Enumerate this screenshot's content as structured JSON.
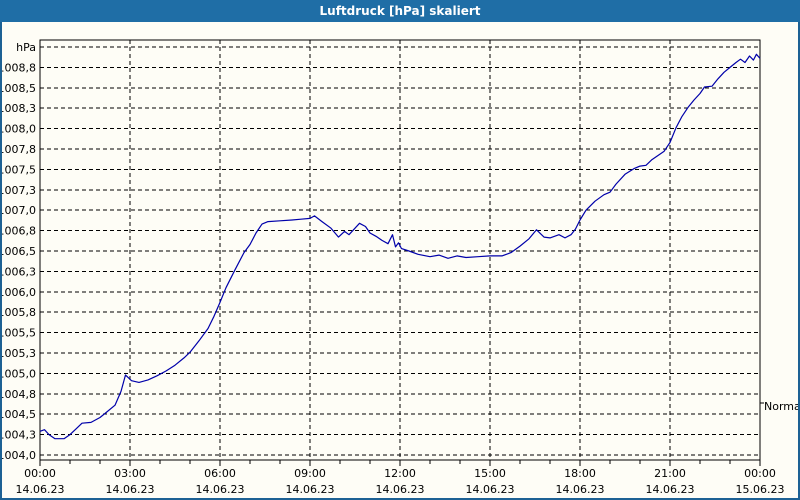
{
  "window": {
    "title": "Luftdruck [hPa] skaliert"
  },
  "colors": {
    "title_bar": "#1f6ea6",
    "title_text": "#ffffff",
    "window_border": "#1d6194",
    "background": "#fefdf6",
    "grid": "#000000",
    "frame": "#000000",
    "label_text": "#000000",
    "curve": "#0000aa"
  },
  "chart_data": {
    "type": "line",
    "title": "Luftdruck [hPa] skaliert",
    "xlabel": "",
    "ylabel": "hPa",
    "grid": "dashed",
    "legend_position": "none",
    "y_axis": {
      "min": 1004.0,
      "max": 1009.0,
      "step": 0.25,
      "tick_labels": [
        "hPa",
        "1008,8",
        "1008,5",
        "1008,3",
        "1008,0",
        "1007,8",
        "1007,5",
        "1007,3",
        "1007,0",
        "1006,8",
        "1006,5",
        "1006,3",
        "1006,0",
        "1005,8",
        "1005,5",
        "1005,3",
        "1005,0",
        "1004,8",
        "1004,5",
        "1004,3",
        "1004,0"
      ]
    },
    "x_axis": {
      "range_hours": [
        0,
        24
      ],
      "major_tick_hours": 3,
      "minor_tick_hours": 1,
      "labels": [
        {
          "time": "00:00",
          "date": "14.06.23"
        },
        {
          "time": "03:00",
          "date": "14.06.23"
        },
        {
          "time": "06:00",
          "date": "14.06.23"
        },
        {
          "time": "09:00",
          "date": "14.06.23"
        },
        {
          "time": "12:00",
          "date": "14.06.23"
        },
        {
          "time": "15:00",
          "date": "14.06.23"
        },
        {
          "time": "18:00",
          "date": "14.06.23"
        },
        {
          "time": "21:00",
          "date": "14.06.23"
        },
        {
          "time": "00:00",
          "date": "15.06.23"
        }
      ]
    },
    "annotations": [
      {
        "label": "Normal",
        "value": 1004.6
      }
    ],
    "series": [
      {
        "name": "Luftdruck",
        "color": "#0000aa",
        "points": [
          [
            0.0,
            1004.29
          ],
          [
            0.15,
            1004.31
          ],
          [
            0.3,
            1004.25
          ],
          [
            0.5,
            1004.2
          ],
          [
            0.8,
            1004.2
          ],
          [
            1.0,
            1004.25
          ],
          [
            1.2,
            1004.32
          ],
          [
            1.4,
            1004.39
          ],
          [
            1.7,
            1004.4
          ],
          [
            2.0,
            1004.46
          ],
          [
            2.2,
            1004.52
          ],
          [
            2.5,
            1004.61
          ],
          [
            2.7,
            1004.78
          ],
          [
            2.85,
            1004.98
          ],
          [
            3.05,
            1004.91
          ],
          [
            3.3,
            1004.89
          ],
          [
            3.6,
            1004.92
          ],
          [
            3.9,
            1004.97
          ],
          [
            4.2,
            1005.03
          ],
          [
            4.5,
            1005.1
          ],
          [
            4.8,
            1005.19
          ],
          [
            5.0,
            1005.26
          ],
          [
            5.3,
            1005.4
          ],
          [
            5.6,
            1005.55
          ],
          [
            5.8,
            1005.7
          ],
          [
            6.0,
            1005.87
          ],
          [
            6.2,
            1006.05
          ],
          [
            6.5,
            1006.27
          ],
          [
            6.8,
            1006.48
          ],
          [
            7.0,
            1006.58
          ],
          [
            7.2,
            1006.72
          ],
          [
            7.4,
            1006.83
          ],
          [
            7.6,
            1006.86
          ],
          [
            8.0,
            1006.87
          ],
          [
            8.4,
            1006.88
          ],
          [
            8.7,
            1006.89
          ],
          [
            9.0,
            1006.9
          ],
          [
            9.15,
            1006.93
          ],
          [
            9.4,
            1006.86
          ],
          [
            9.7,
            1006.78
          ],
          [
            9.95,
            1006.67
          ],
          [
            10.15,
            1006.74
          ],
          [
            10.3,
            1006.7
          ],
          [
            10.5,
            1006.78
          ],
          [
            10.65,
            1006.84
          ],
          [
            10.85,
            1006.8
          ],
          [
            11.0,
            1006.72
          ],
          [
            11.2,
            1006.68
          ],
          [
            11.4,
            1006.63
          ],
          [
            11.6,
            1006.59
          ],
          [
            11.75,
            1006.7
          ],
          [
            11.85,
            1006.55
          ],
          [
            11.95,
            1006.6
          ],
          [
            12.05,
            1006.53
          ],
          [
            12.3,
            1006.5
          ],
          [
            12.6,
            1006.46
          ],
          [
            13.0,
            1006.43
          ],
          [
            13.3,
            1006.45
          ],
          [
            13.6,
            1006.41
          ],
          [
            13.9,
            1006.44
          ],
          [
            14.2,
            1006.42
          ],
          [
            14.6,
            1006.43
          ],
          [
            15.0,
            1006.44
          ],
          [
            15.4,
            1006.44
          ],
          [
            15.7,
            1006.48
          ],
          [
            16.0,
            1006.56
          ],
          [
            16.3,
            1006.65
          ],
          [
            16.55,
            1006.76
          ],
          [
            16.8,
            1006.67
          ],
          [
            17.0,
            1006.66
          ],
          [
            17.3,
            1006.7
          ],
          [
            17.5,
            1006.66
          ],
          [
            17.7,
            1006.7
          ],
          [
            17.85,
            1006.77
          ],
          [
            18.0,
            1006.88
          ],
          [
            18.2,
            1007.0
          ],
          [
            18.5,
            1007.11
          ],
          [
            18.8,
            1007.19
          ],
          [
            19.0,
            1007.22
          ],
          [
            19.2,
            1007.32
          ],
          [
            19.5,
            1007.44
          ],
          [
            19.8,
            1007.51
          ],
          [
            20.0,
            1007.54
          ],
          [
            20.2,
            1007.55
          ],
          [
            20.4,
            1007.62
          ],
          [
            20.6,
            1007.67
          ],
          [
            20.8,
            1007.72
          ],
          [
            21.0,
            1007.83
          ],
          [
            21.2,
            1008.01
          ],
          [
            21.4,
            1008.15
          ],
          [
            21.6,
            1008.26
          ],
          [
            21.8,
            1008.35
          ],
          [
            22.0,
            1008.43
          ],
          [
            22.15,
            1008.51
          ],
          [
            22.4,
            1008.52
          ],
          [
            22.6,
            1008.61
          ],
          [
            22.8,
            1008.69
          ],
          [
            23.0,
            1008.75
          ],
          [
            23.2,
            1008.81
          ],
          [
            23.35,
            1008.85
          ],
          [
            23.5,
            1008.81
          ],
          [
            23.65,
            1008.89
          ],
          [
            23.78,
            1008.84
          ],
          [
            23.88,
            1008.91
          ],
          [
            24.0,
            1008.86
          ]
        ]
      }
    ]
  }
}
